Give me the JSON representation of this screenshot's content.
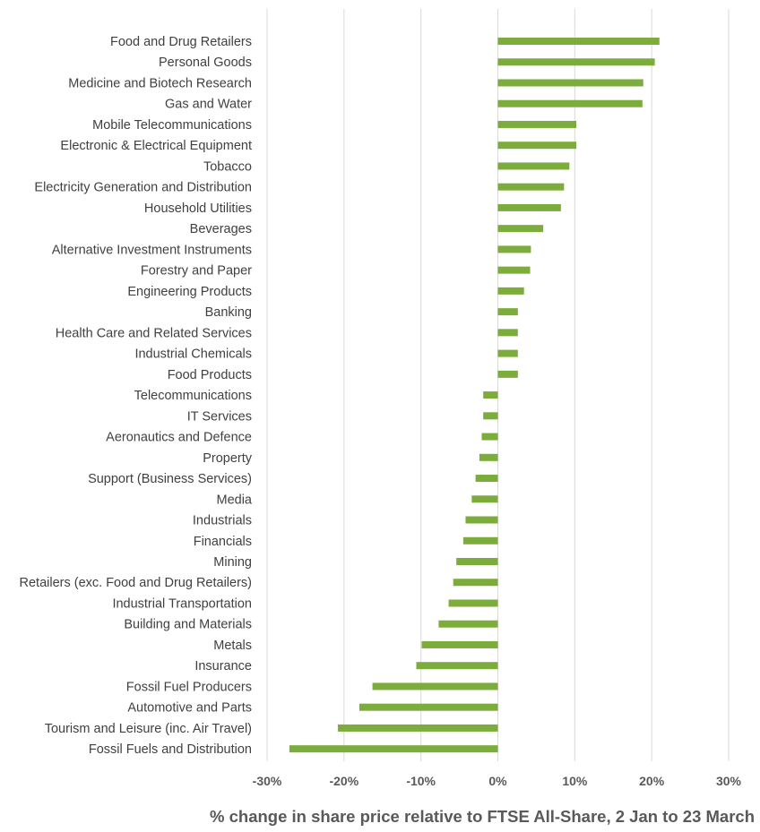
{
  "chart_data": {
    "type": "bar",
    "orientation": "horizontal",
    "title": "",
    "xlabel": "% change in share price relative to FTSE All-Share, 2 Jan to 23 March",
    "ylabel": "",
    "xlim": [
      -30,
      30
    ],
    "x_ticks": [
      -30,
      -20,
      -10,
      0,
      10,
      20,
      30
    ],
    "x_tick_labels": [
      "-30%",
      "-20%",
      "-10%",
      "0%",
      "10%",
      "20%",
      "30%"
    ],
    "grid": "vertical",
    "bar_color": "#7cac3c",
    "categories": [
      "Food and Drug Retailers",
      "Personal Goods",
      "Medicine and Biotech Research",
      "Gas and Water",
      "Mobile Telecommunications",
      "Electronic & Electrical Equipment",
      "Tobacco",
      "Electricity Generation and Distribution",
      "Household Utilities",
      "Beverages",
      "Alternative Investment Instruments",
      "Forestry and Paper",
      "Engineering Products",
      "Banking",
      "Health Care and Related Services",
      "Industrial Chemicals",
      "Food Products",
      "Telecommunications",
      "IT Services",
      "Aeronautics and Defence",
      "Property",
      "Support (Business Services)",
      "Media",
      "Industrials",
      "Financials",
      "Mining",
      "Retailers (exc. Food and Drug Retailers)",
      "Industrial Transportation",
      "Building and Materials",
      "Metals",
      "Insurance",
      "Fossil Fuel Producers",
      "Automotive and Parts",
      "Tourism and Leisure (inc. Air Travel)",
      "Fossil Fuels and Distribution"
    ],
    "values": [
      21.0,
      20.4,
      18.9,
      18.8,
      10.2,
      10.2,
      9.3,
      8.6,
      8.2,
      5.9,
      4.3,
      4.2,
      3.4,
      2.6,
      2.6,
      2.6,
      2.6,
      -1.9,
      -1.9,
      -2.1,
      -2.4,
      -2.9,
      -3.4,
      -4.2,
      -4.5,
      -5.4,
      -5.8,
      -6.4,
      -7.7,
      -9.9,
      -10.6,
      -16.3,
      -18.0,
      -20.8,
      -27.1
    ]
  }
}
